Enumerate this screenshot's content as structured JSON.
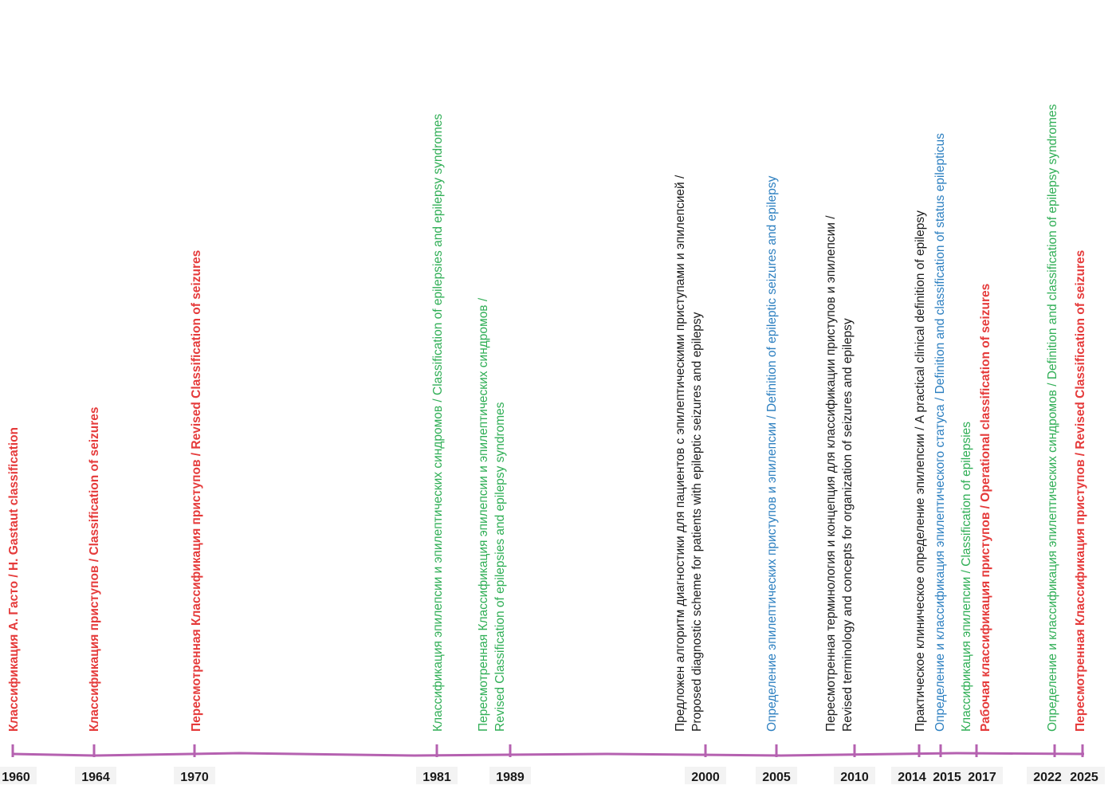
{
  "colors": {
    "axis": "#b561b0",
    "red": "#e53a3a",
    "green": "#2fae55",
    "blue": "#2c7fc0",
    "black": "#1a1a1a"
  },
  "years": [
    "1960",
    "1964",
    "1970",
    "1981",
    "1989",
    "2000",
    "2005",
    "2010",
    "2014",
    "2015",
    "2017",
    "2022",
    "2025"
  ],
  "events": [
    {
      "year": "1960",
      "color": "red",
      "bold": true,
      "lines": [
        "Классификация А. Гасто / H. Gastaut  classification"
      ]
    },
    {
      "year": "1964",
      "color": "red",
      "bold": true,
      "lines": [
        "Классификация приступов / Classification of seizures"
      ]
    },
    {
      "year": "1970",
      "color": "red",
      "bold": true,
      "lines": [
        "Пересмотренная Классификация приступов / Revised Classification of seizures"
      ]
    },
    {
      "year": "1981",
      "color": "green",
      "bold": false,
      "lines": [
        "Классификация эпилепсии и эпилептических синдромов / Classification of epilepsies and epilepsy syndromes"
      ]
    },
    {
      "year": "1989",
      "color": "green",
      "bold": false,
      "lines": [
        "Пересмотренная Классификация эпилепсии и эпилептических синдромов /",
        "Revised Classification of epilepsies and epilepsy syndromes"
      ]
    },
    {
      "year": "2000",
      "color": "black",
      "bold": false,
      "lines": [
        "Предложен алгоритм диагностики для пациентов с эпилептическими приступами и эпилепсией /",
        "Proposed diagnostic scheme for patients with epileptic seizures and epilepsy"
      ]
    },
    {
      "year": "2005",
      "color": "blue",
      "bold": false,
      "lines": [
        "Определение эпилептических приступов и эпилепсии / Definition of epileptic seizures and epilepsy"
      ]
    },
    {
      "year": "2010",
      "color": "black",
      "bold": false,
      "lines": [
        "Пересмотренная терминология и концепция для классификации приступов и эпилепсии /",
        "Revised terminology and concepts for organization of seizures and epilepsy"
      ]
    },
    {
      "year": "2014",
      "color": "black",
      "bold": false,
      "lines": [
        "Практическое клиническое определение эпилепсии / A practical clinical definition of epilepsy"
      ]
    },
    {
      "year": "2015",
      "color": "blue",
      "bold": false,
      "lines": [
        "Определение и классификация эпилептического статуса / Definition and classification of status epilepticus"
      ]
    },
    {
      "year": "2017",
      "color": "green",
      "bold": false,
      "lines": [
        "Классификация эпилепсии / Classification of epilepsies"
      ]
    },
    {
      "year": "2017",
      "color": "red",
      "bold": true,
      "lines": [
        "Рабочая классификация приступов / Operational classification of seizures"
      ]
    },
    {
      "year": "2022",
      "color": "green",
      "bold": false,
      "lines": [
        "Определение и классификация эпилептических синдромов / Definition and classification of epilepsy syndromes"
      ]
    },
    {
      "year": "2025",
      "color": "red",
      "bold": true,
      "lines": [
        "Пересмотренная Классификация приступов / Revised Classification of seizures"
      ]
    }
  ]
}
